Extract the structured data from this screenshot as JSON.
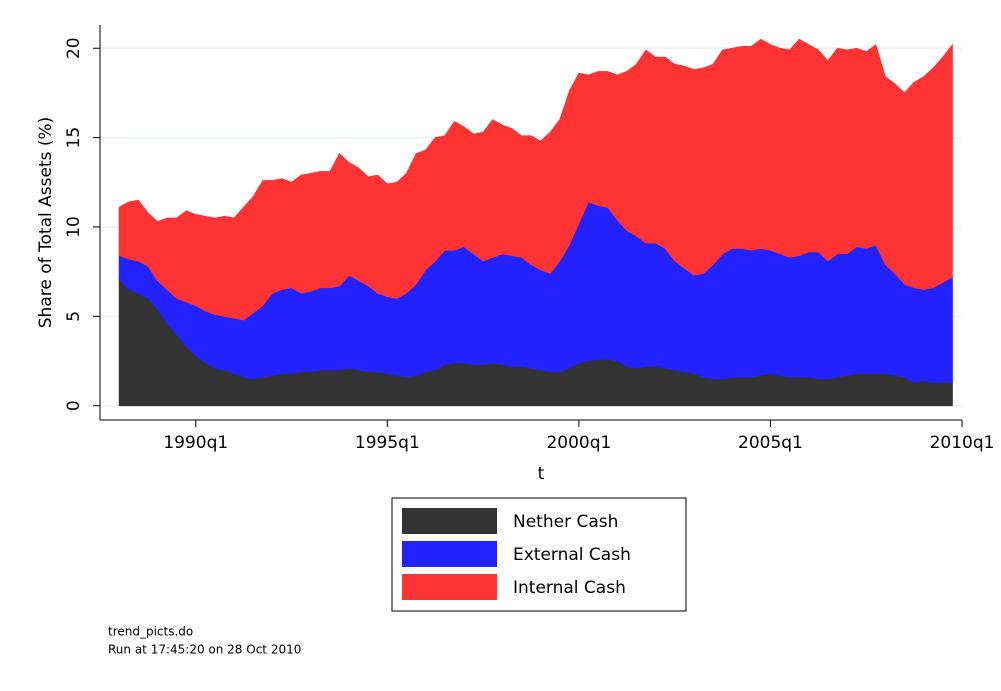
{
  "chart_data": {
    "type": "stacked_area",
    "x": [
      "1988q1",
      "1988q2",
      "1988q3",
      "1988q4",
      "1989q1",
      "1989q2",
      "1989q3",
      "1989q4",
      "1990q1",
      "1990q2",
      "1990q3",
      "1990q4",
      "1991q1",
      "1991q2",
      "1991q3",
      "1991q4",
      "1992q1",
      "1992q2",
      "1992q3",
      "1992q4",
      "1993q1",
      "1993q2",
      "1993q3",
      "1993q4",
      "1994q1",
      "1994q2",
      "1994q3",
      "1994q4",
      "1995q1",
      "1995q2",
      "1995q3",
      "1995q4",
      "1996q1",
      "1996q2",
      "1996q3",
      "1996q4",
      "1997q1",
      "1997q2",
      "1997q3",
      "1997q4",
      "1998q1",
      "1998q2",
      "1998q3",
      "1998q4",
      "1999q1",
      "1999q2",
      "1999q3",
      "1999q4",
      "2000q1",
      "2000q2",
      "2000q3",
      "2000q4",
      "2001q1",
      "2001q2",
      "2001q3",
      "2001q4",
      "2002q1",
      "2002q2",
      "2002q3",
      "2002q4",
      "2003q1",
      "2003q2",
      "2003q3",
      "2003q4",
      "2004q1",
      "2004q2",
      "2004q3",
      "2004q4",
      "2005q1",
      "2005q2",
      "2005q3",
      "2005q4",
      "2006q1",
      "2006q2",
      "2006q3",
      "2006q4",
      "2007q1",
      "2007q2",
      "2007q3",
      "2007q4",
      "2008q1",
      "2008q2",
      "2008q3",
      "2008q4",
      "2009q1",
      "2009q2",
      "2009q3",
      "2009q4"
    ],
    "series": [
      {
        "name": "Nether Cash",
        "color": "#333333",
        "values": [
          7.1,
          6.5,
          6.3,
          6.0,
          5.4,
          4.6,
          4.0,
          3.3,
          2.8,
          2.4,
          2.1,
          2.0,
          1.8,
          1.6,
          1.5,
          1.6,
          1.7,
          1.8,
          1.8,
          1.9,
          1.9,
          2.0,
          2.0,
          2.0,
          2.1,
          2.0,
          1.9,
          1.9,
          1.8,
          1.7,
          1.6,
          1.7,
          1.9,
          2.0,
          2.3,
          2.4,
          2.4,
          2.3,
          2.3,
          2.4,
          2.3,
          2.2,
          2.2,
          2.1,
          2.0,
          1.9,
          1.9,
          2.1,
          2.4,
          2.5,
          2.6,
          2.6,
          2.5,
          2.2,
          2.1,
          2.2,
          2.2,
          2.1,
          2.0,
          1.9,
          1.8,
          1.6,
          1.5,
          1.5,
          1.6,
          1.6,
          1.6,
          1.7,
          1.8,
          1.7,
          1.6,
          1.6,
          1.6,
          1.5,
          1.5,
          1.6,
          1.7,
          1.8,
          1.8,
          1.8,
          1.8,
          1.7,
          1.6,
          1.3,
          1.4,
          1.3,
          1.3,
          1.3
        ]
      },
      {
        "name": "External Cash",
        "color": "#2222ff",
        "values": [
          1.3,
          1.7,
          1.8,
          1.8,
          1.6,
          1.9,
          2.0,
          2.5,
          2.8,
          2.9,
          3.0,
          3.0,
          3.1,
          3.2,
          3.7,
          4.0,
          4.6,
          4.7,
          4.8,
          4.4,
          4.5,
          4.6,
          4.6,
          4.7,
          5.2,
          5.0,
          4.8,
          4.4,
          4.3,
          4.3,
          4.7,
          5.1,
          5.7,
          6.1,
          6.4,
          6.3,
          6.5,
          6.2,
          5.8,
          5.9,
          6.2,
          6.2,
          6.1,
          5.8,
          5.6,
          5.5,
          6.2,
          6.9,
          7.8,
          8.9,
          8.6,
          8.5,
          7.9,
          7.6,
          7.4,
          6.9,
          6.9,
          6.7,
          6.1,
          5.8,
          5.5,
          5.8,
          6.4,
          7.0,
          7.2,
          7.2,
          7.1,
          7.1,
          6.9,
          6.8,
          6.7,
          6.8,
          7.0,
          7.1,
          6.6,
          6.9,
          6.8,
          7.1,
          7.0,
          7.2,
          6.1,
          5.7,
          5.2,
          5.3,
          5.1,
          5.3,
          5.6,
          5.9
        ]
      },
      {
        "name": "Internal Cash",
        "color": "#ff3333",
        "values": [
          2.7,
          3.2,
          3.4,
          3.0,
          3.3,
          4.0,
          4.5,
          5.1,
          5.1,
          5.3,
          5.4,
          5.6,
          5.6,
          6.3,
          6.5,
          7.0,
          6.3,
          6.2,
          5.9,
          6.6,
          6.6,
          6.5,
          6.5,
          7.4,
          6.3,
          6.3,
          6.1,
          6.6,
          6.3,
          6.5,
          6.7,
          7.3,
          6.7,
          6.9,
          6.4,
          7.2,
          6.7,
          6.7,
          7.2,
          7.7,
          7.2,
          7.1,
          6.8,
          7.2,
          7.2,
          7.9,
          7.9,
          8.6,
          8.4,
          7.1,
          7.5,
          7.6,
          8.1,
          8.9,
          9.6,
          10.8,
          10.4,
          10.7,
          11.0,
          11.3,
          11.5,
          11.5,
          11.2,
          11.4,
          11.2,
          11.3,
          11.4,
          11.7,
          11.5,
          11.5,
          11.6,
          12.1,
          11.6,
          11.3,
          11.2,
          11.5,
          11.4,
          11.1,
          11.0,
          11.2,
          10.5,
          10.6,
          10.7,
          11.5,
          11.9,
          12.3,
          12.6,
          13.0
        ]
      }
    ],
    "xlabel": "t",
    "ylabel": "Share of Total Assets (%)",
    "xlim": [
      "1987q3",
      "2010q1"
    ],
    "xticks": [
      "1990q1",
      "1995q1",
      "2000q1",
      "2005q1",
      "2010q1"
    ],
    "ylim": [
      -0.8,
      21.3
    ],
    "yticks": [
      0,
      5,
      10,
      15,
      20
    ],
    "grid": true,
    "legend": "bottom"
  },
  "footnote": [
    "trend_picts.do",
    "Run at 17:45:20 on 28 Oct 2010"
  ]
}
